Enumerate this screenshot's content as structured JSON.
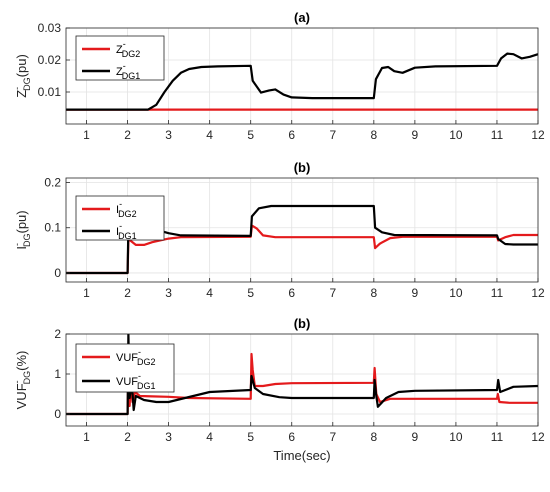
{
  "chart_data": [
    {
      "type": "line",
      "title": "(a)",
      "ylabel": {
        "base": "Z",
        "sup": "-",
        "sub": "DG",
        "suffix": "(pu)"
      },
      "xlim": [
        0.5,
        12
      ],
      "ylim": [
        0,
        0.03
      ],
      "xticks": [
        1,
        2,
        3,
        4,
        5,
        6,
        7,
        8,
        9,
        10,
        11,
        12
      ],
      "yticks": [
        0.01,
        0.02,
        0.03
      ],
      "ytick_labels": [
        "0.01",
        "0.02",
        "0.03"
      ],
      "grid": true,
      "legend_position": "top-left",
      "series": [
        {
          "label": {
            "base": "Z",
            "sup": "-",
            "sub": "DG2"
          },
          "color": "#e41a1c",
          "points": [
            [
              0.5,
              0.0045
            ],
            [
              12,
              0.0045
            ]
          ]
        },
        {
          "label": {
            "base": "Z",
            "sup": "-",
            "sub": "DG1"
          },
          "color": "#000000",
          "points": [
            [
              0.5,
              0.0045
            ],
            [
              2.5,
              0.0045
            ],
            [
              2.7,
              0.006
            ],
            [
              2.9,
              0.01
            ],
            [
              3.1,
              0.0135
            ],
            [
              3.3,
              0.016
            ],
            [
              3.5,
              0.0172
            ],
            [
              3.8,
              0.0178
            ],
            [
              4.2,
              0.018
            ],
            [
              5.0,
              0.0182
            ],
            [
              5.05,
              0.0135
            ],
            [
              5.25,
              0.0098
            ],
            [
              5.45,
              0.0105
            ],
            [
              5.6,
              0.0108
            ],
            [
              5.8,
              0.0092
            ],
            [
              6.0,
              0.0083
            ],
            [
              6.5,
              0.0081
            ],
            [
              8.0,
              0.0081
            ],
            [
              8.05,
              0.014
            ],
            [
              8.2,
              0.0175
            ],
            [
              8.35,
              0.0178
            ],
            [
              8.5,
              0.0165
            ],
            [
              8.7,
              0.016
            ],
            [
              9.0,
              0.0176
            ],
            [
              9.5,
              0.018
            ],
            [
              11.0,
              0.0182
            ],
            [
              11.1,
              0.0205
            ],
            [
              11.25,
              0.022
            ],
            [
              11.4,
              0.0218
            ],
            [
              11.6,
              0.0205
            ],
            [
              11.8,
              0.021
            ],
            [
              12.0,
              0.0218
            ]
          ]
        }
      ]
    },
    {
      "type": "line",
      "title": "(b)",
      "ylabel": {
        "base": "I",
        "sup": "-",
        "sub": "DG",
        "suffix": "(pu)"
      },
      "xlim": [
        0.5,
        12
      ],
      "ylim": [
        -0.02,
        0.21
      ],
      "xticks": [
        1,
        2,
        3,
        4,
        5,
        6,
        7,
        8,
        9,
        10,
        11,
        12
      ],
      "yticks": [
        0,
        0.1,
        0.2
      ],
      "ytick_labels": [
        "0",
        "0.1",
        "0.2"
      ],
      "grid": true,
      "legend_position": "top-left",
      "series": [
        {
          "label": {
            "base": "I",
            "sup": "-",
            "sub": "DG2"
          },
          "color": "#e41a1c",
          "points": [
            [
              0.5,
              0
            ],
            [
              2.0,
              0
            ],
            [
              2.02,
              0.075
            ],
            [
              2.2,
              0.062
            ],
            [
              2.4,
              0.062
            ],
            [
              2.6,
              0.068
            ],
            [
              3.0,
              0.076
            ],
            [
              3.3,
              0.079
            ],
            [
              5.0,
              0.08
            ],
            [
              5.03,
              0.105
            ],
            [
              5.15,
              0.098
            ],
            [
              5.3,
              0.083
            ],
            [
              5.6,
              0.079
            ],
            [
              8.0,
              0.079
            ],
            [
              8.03,
              0.055
            ],
            [
              8.15,
              0.065
            ],
            [
              8.4,
              0.077
            ],
            [
              8.7,
              0.08
            ],
            [
              11.0,
              0.08
            ],
            [
              11.03,
              0.072
            ],
            [
              11.2,
              0.079
            ],
            [
              11.4,
              0.084
            ],
            [
              12.0,
              0.084
            ]
          ]
        },
        {
          "label": {
            "base": "I",
            "sup": "-",
            "sub": "DG1"
          },
          "color": "#000000",
          "points": [
            [
              0.5,
              0
            ],
            [
              2.0,
              0
            ],
            [
              2.02,
              0.105
            ],
            [
              2.3,
              0.104
            ],
            [
              2.6,
              0.098
            ],
            [
              3.0,
              0.088
            ],
            [
              3.3,
              0.083
            ],
            [
              5.0,
              0.082
            ],
            [
              5.03,
              0.125
            ],
            [
              5.2,
              0.143
            ],
            [
              5.5,
              0.148
            ],
            [
              8.0,
              0.148
            ],
            [
              8.03,
              0.1
            ],
            [
              8.2,
              0.09
            ],
            [
              8.5,
              0.084
            ],
            [
              11.0,
              0.083
            ],
            [
              11.03,
              0.075
            ],
            [
              11.2,
              0.064
            ],
            [
              11.4,
              0.063
            ],
            [
              12.0,
              0.063
            ]
          ]
        }
      ]
    },
    {
      "type": "line",
      "title": "(b)",
      "xlabel": "Time(sec)",
      "ylabel": {
        "base": "VUF",
        "sup": "-",
        "sub": "DG",
        "suffix": "(%)"
      },
      "xlim": [
        0.5,
        12
      ],
      "ylim": [
        -0.3,
        2
      ],
      "xticks": [
        1,
        2,
        3,
        4,
        5,
        6,
        7,
        8,
        9,
        10,
        11,
        12
      ],
      "yticks": [
        0,
        1,
        2
      ],
      "ytick_labels": [
        "0",
        "1",
        "2"
      ],
      "grid": true,
      "legend_position": "top-left",
      "series": [
        {
          "label": {
            "base": "VUF",
            "sup": "-",
            "sub": "DG2"
          },
          "color": "#e41a1c",
          "points": [
            [
              0.5,
              0
            ],
            [
              2.0,
              0
            ],
            [
              2.02,
              1.2
            ],
            [
              2.05,
              0.2
            ],
            [
              2.08,
              0.8
            ],
            [
              2.12,
              0.3
            ],
            [
              2.18,
              0.55
            ],
            [
              2.3,
              0.45
            ],
            [
              2.6,
              0.44
            ],
            [
              3.0,
              0.43
            ],
            [
              3.5,
              0.4
            ],
            [
              5.0,
              0.38
            ],
            [
              5.02,
              1.5
            ],
            [
              5.05,
              1.1
            ],
            [
              5.1,
              0.7
            ],
            [
              5.3,
              0.7
            ],
            [
              5.6,
              0.75
            ],
            [
              6.0,
              0.77
            ],
            [
              8.0,
              0.78
            ],
            [
              8.02,
              1.15
            ],
            [
              8.06,
              0.5
            ],
            [
              8.15,
              0.3
            ],
            [
              8.4,
              0.38
            ],
            [
              9.0,
              0.38
            ],
            [
              11.0,
              0.38
            ],
            [
              11.02,
              0.5
            ],
            [
              11.06,
              0.3
            ],
            [
              11.3,
              0.28
            ],
            [
              12.0,
              0.28
            ]
          ]
        },
        {
          "label": {
            "base": "VUF",
            "sup": "-",
            "sub": "DG1"
          },
          "color": "#000000",
          "points": [
            [
              0.5,
              0
            ],
            [
              2.0,
              0
            ],
            [
              2.02,
              2.0
            ],
            [
              2.05,
              0.4
            ],
            [
              2.1,
              0.8
            ],
            [
              2.15,
              0.1
            ],
            [
              2.2,
              0.45
            ],
            [
              2.4,
              0.35
            ],
            [
              2.7,
              0.3
            ],
            [
              3.0,
              0.3
            ],
            [
              3.4,
              0.4
            ],
            [
              4.0,
              0.55
            ],
            [
              5.0,
              0.6
            ],
            [
              5.02,
              0.95
            ],
            [
              5.1,
              0.65
            ],
            [
              5.3,
              0.5
            ],
            [
              5.7,
              0.42
            ],
            [
              6.0,
              0.4
            ],
            [
              8.0,
              0.4
            ],
            [
              8.02,
              0.85
            ],
            [
              8.06,
              0.45
            ],
            [
              8.1,
              0.18
            ],
            [
              8.3,
              0.4
            ],
            [
              8.6,
              0.55
            ],
            [
              9.0,
              0.58
            ],
            [
              11.0,
              0.6
            ],
            [
              11.03,
              0.85
            ],
            [
              11.08,
              0.55
            ],
            [
              11.4,
              0.68
            ],
            [
              12.0,
              0.7
            ]
          ]
        }
      ]
    }
  ]
}
